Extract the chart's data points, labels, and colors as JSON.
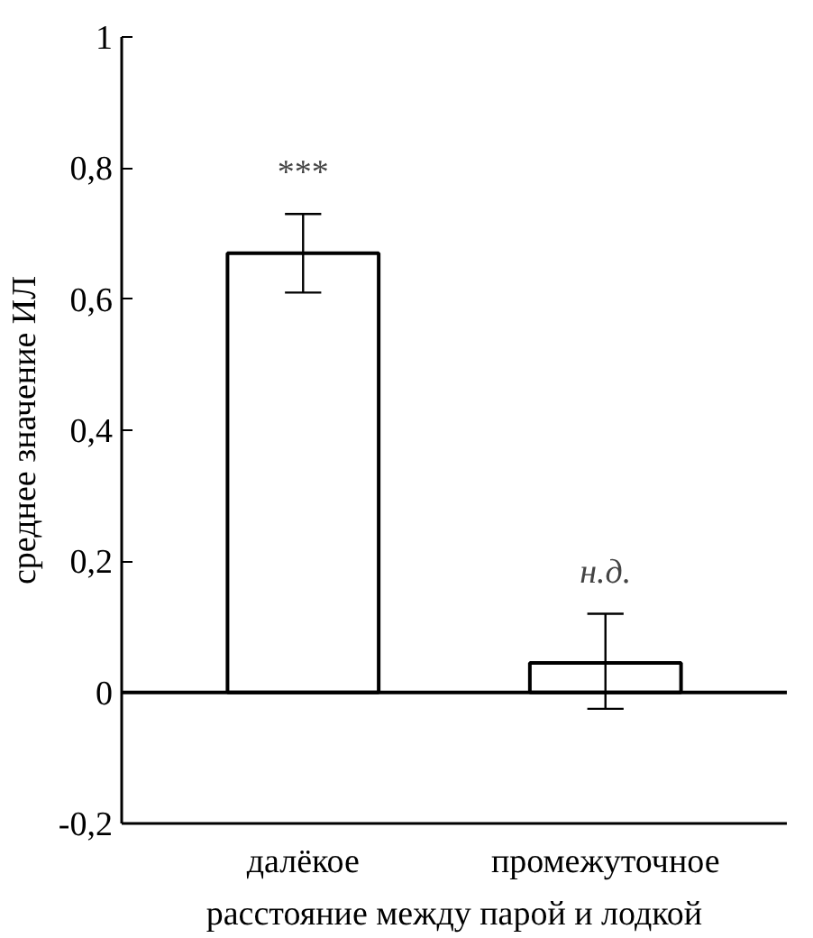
{
  "chart_data": {
    "type": "bar",
    "xlabel": "расстояние между парой и лодкой",
    "ylabel": "среднее значение ИЛ",
    "categories": [
      "далёкое",
      "промежуточное"
    ],
    "values": [
      0.67,
      0.045
    ],
    "errors": [
      [
        0.61,
        0.73
      ],
      [
        -0.025,
        0.12
      ]
    ],
    "color": "#ffffff",
    "ylim": [
      -0.2,
      1
    ],
    "yticks": [
      {
        "value": -0.2,
        "label": "-0,2"
      },
      0,
      {
        "value": 0.2,
        "label": "0,2"
      },
      {
        "value": 0.4,
        "label": "0,4"
      },
      {
        "value": 0.6,
        "label": "0,6"
      },
      {
        "value": 0.8,
        "label": "0,8"
      },
      1
    ],
    "ref_lines": [
      {
        "axis": "y",
        "value": 0,
        "label": null,
        "color": "#000000"
      }
    ],
    "annotations": [
      "***",
      "н.д."
    ],
    "grid": false
  }
}
